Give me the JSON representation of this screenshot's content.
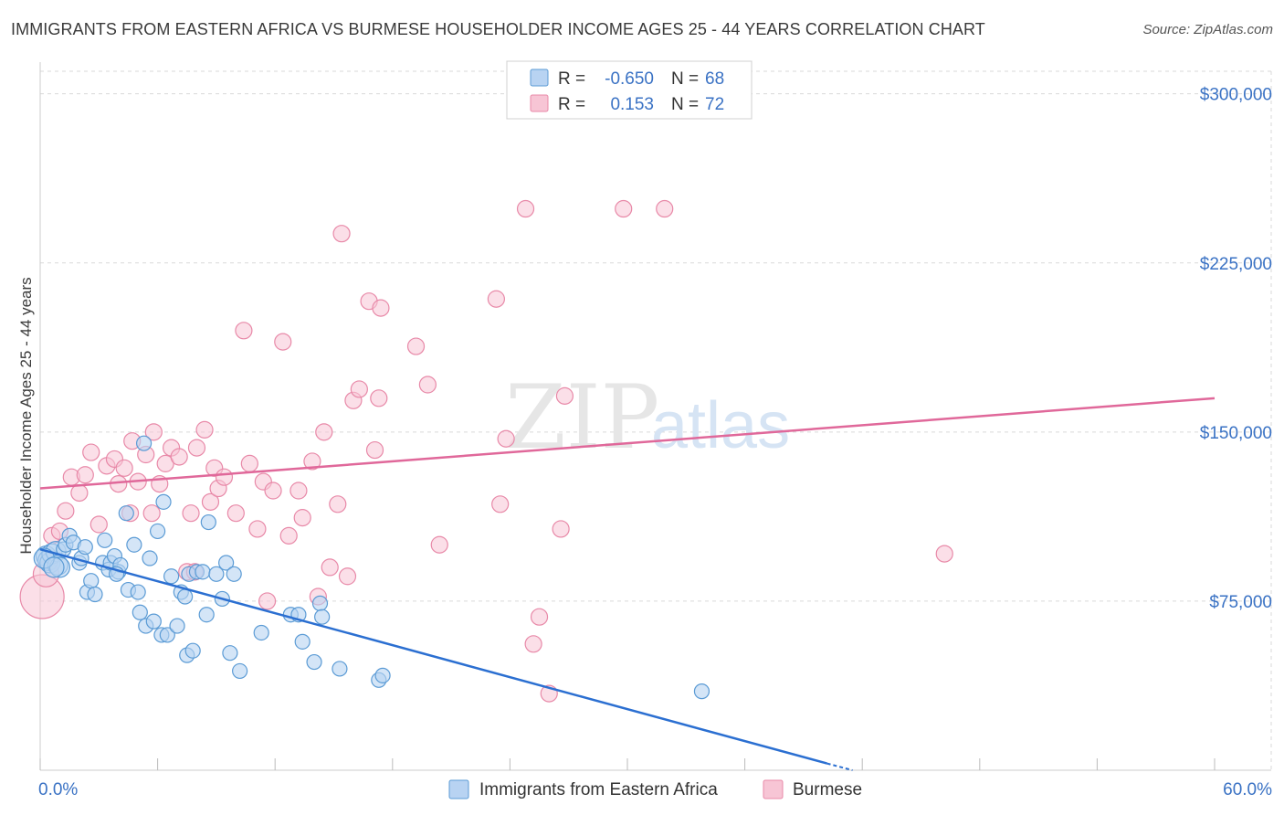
{
  "header": {
    "title": "IMMIGRANTS FROM EASTERN AFRICA VS BURMESE HOUSEHOLDER INCOME AGES 25 - 44 YEARS CORRELATION CHART",
    "source": "Source: ZipAtlas.com"
  },
  "watermark": {
    "zip": "ZIP",
    "atlas": "atlas"
  },
  "colors": {
    "blue": "#5b9bd5",
    "blue_fill": "#b8d3f2",
    "blue_line": "#2b6fd1",
    "pink": "#e889a8",
    "pink_fill": "#f7c5d5",
    "pink_line": "#e0689a",
    "axis_text": "#3a72c4",
    "grid": "#d9d9d9"
  },
  "legend_box": {
    "rows": [
      {
        "r_label": "R =",
        "r_value": "-0.650",
        "n_label": "N =",
        "n_value": "68"
      },
      {
        "r_label": "R =",
        "r_value": "0.153",
        "n_label": "N =",
        "n_value": "72"
      }
    ]
  },
  "chart_data": {
    "type": "scatter",
    "title": "IMMIGRANTS FROM EASTERN AFRICA VS BURMESE HOUSEHOLDER INCOME AGES 25 - 44 YEARS CORRELATION CHART",
    "xlabel": "",
    "ylabel": "Householder Income Ages 25 - 44 years",
    "xlim": [
      0,
      60
    ],
    "ylim": [
      0,
      310000
    ],
    "x_tick_labels": [
      "0.0%",
      "60.0%"
    ],
    "y_ticks": [
      75000,
      150000,
      225000,
      300000
    ],
    "y_tick_labels": [
      "$75,000",
      "$150,000",
      "$225,000",
      "$300,000"
    ],
    "grid": true,
    "legend": [
      "Immigrants from Eastern Africa",
      "Burmese"
    ],
    "series": [
      {
        "name": "Immigrants from Eastern Africa",
        "r": -0.65,
        "n": 68,
        "trend": {
          "x": [
            0,
            40.2
          ],
          "y": [
            98000,
            3000
          ]
        },
        "points": [
          [
            0.3,
            95000
          ],
          [
            0.4,
            93000
          ],
          [
            0.5,
            92000
          ],
          [
            0.6,
            96000
          ],
          [
            0.8,
            97000
          ],
          [
            0.9,
            91000
          ],
          [
            1.0,
            90000
          ],
          [
            1.2,
            98000
          ],
          [
            1.3,
            100000
          ],
          [
            1.5,
            104000
          ],
          [
            1.7,
            101000
          ],
          [
            2.0,
            92000
          ],
          [
            2.1,
            94000
          ],
          [
            2.3,
            99000
          ],
          [
            2.4,
            79000
          ],
          [
            2.6,
            84000
          ],
          [
            2.8,
            78000
          ],
          [
            3.2,
            92000
          ],
          [
            3.3,
            102000
          ],
          [
            3.5,
            89000
          ],
          [
            3.6,
            92000
          ],
          [
            3.8,
            95000
          ],
          [
            4.0,
            88000
          ],
          [
            4.1,
            91000
          ],
          [
            4.4,
            114000
          ],
          [
            4.5,
            80000
          ],
          [
            4.8,
            100000
          ],
          [
            5.0,
            79000
          ],
          [
            5.1,
            70000
          ],
          [
            5.3,
            145000
          ],
          [
            5.4,
            64000
          ],
          [
            5.6,
            94000
          ],
          [
            5.8,
            66000
          ],
          [
            6.0,
            106000
          ],
          [
            6.2,
            60000
          ],
          [
            6.3,
            119000
          ],
          [
            6.5,
            60000
          ],
          [
            6.7,
            86000
          ],
          [
            7.0,
            64000
          ],
          [
            7.2,
            79000
          ],
          [
            7.4,
            77000
          ],
          [
            7.5,
            51000
          ],
          [
            7.6,
            87000
          ],
          [
            7.8,
            53000
          ],
          [
            8.0,
            88000
          ],
          [
            8.3,
            88000
          ],
          [
            8.5,
            69000
          ],
          [
            8.6,
            110000
          ],
          [
            9.0,
            87000
          ],
          [
            9.3,
            76000
          ],
          [
            9.5,
            92000
          ],
          [
            9.7,
            52000
          ],
          [
            9.9,
            87000
          ],
          [
            10.2,
            44000
          ],
          [
            11.3,
            61000
          ],
          [
            12.8,
            69000
          ],
          [
            13.2,
            69000
          ],
          [
            13.4,
            57000
          ],
          [
            14.0,
            48000
          ],
          [
            14.3,
            74000
          ],
          [
            14.4,
            68000
          ],
          [
            15.3,
            45000
          ],
          [
            17.3,
            40000
          ],
          [
            17.5,
            42000
          ],
          [
            33.8,
            35000
          ],
          [
            0.2,
            94000
          ],
          [
            0.7,
            90000
          ],
          [
            3.9,
            87000
          ]
        ]
      },
      {
        "name": "Burmese",
        "r": 0.153,
        "n": 72,
        "trend": {
          "x": [
            0,
            60
          ],
          "y": [
            125000,
            165000
          ]
        },
        "points": [
          [
            0.1,
            77000
          ],
          [
            0.3,
            87000
          ],
          [
            0.6,
            104000
          ],
          [
            1.0,
            106000
          ],
          [
            1.3,
            115000
          ],
          [
            1.6,
            130000
          ],
          [
            2.0,
            123000
          ],
          [
            2.3,
            131000
          ],
          [
            2.6,
            141000
          ],
          [
            3.0,
            109000
          ],
          [
            3.4,
            135000
          ],
          [
            3.8,
            138000
          ],
          [
            4.0,
            127000
          ],
          [
            4.3,
            134000
          ],
          [
            4.6,
            114000
          ],
          [
            4.7,
            146000
          ],
          [
            5.0,
            128000
          ],
          [
            5.4,
            140000
          ],
          [
            5.7,
            114000
          ],
          [
            5.8,
            150000
          ],
          [
            6.1,
            127000
          ],
          [
            6.4,
            136000
          ],
          [
            6.7,
            143000
          ],
          [
            7.1,
            139000
          ],
          [
            7.5,
            88000
          ],
          [
            7.7,
            114000
          ],
          [
            7.9,
            88000
          ],
          [
            8.0,
            143000
          ],
          [
            8.4,
            151000
          ],
          [
            8.7,
            119000
          ],
          [
            8.9,
            134000
          ],
          [
            9.1,
            125000
          ],
          [
            9.4,
            130000
          ],
          [
            10.0,
            114000
          ],
          [
            10.4,
            195000
          ],
          [
            10.7,
            136000
          ],
          [
            11.1,
            107000
          ],
          [
            11.4,
            128000
          ],
          [
            11.6,
            75000
          ],
          [
            11.9,
            124000
          ],
          [
            12.4,
            190000
          ],
          [
            12.7,
            104000
          ],
          [
            13.2,
            124000
          ],
          [
            13.4,
            112000
          ],
          [
            13.9,
            137000
          ],
          [
            14.2,
            77000
          ],
          [
            14.5,
            150000
          ],
          [
            14.8,
            90000
          ],
          [
            15.2,
            118000
          ],
          [
            15.4,
            238000
          ],
          [
            15.7,
            86000
          ],
          [
            16.0,
            164000
          ],
          [
            16.3,
            169000
          ],
          [
            16.8,
            208000
          ],
          [
            17.1,
            142000
          ],
          [
            17.3,
            165000
          ],
          [
            17.4,
            205000
          ],
          [
            19.2,
            188000
          ],
          [
            19.8,
            171000
          ],
          [
            20.4,
            100000
          ],
          [
            23.3,
            209000
          ],
          [
            23.5,
            118000
          ],
          [
            23.8,
            147000
          ],
          [
            24.8,
            249000
          ],
          [
            25.2,
            56000
          ],
          [
            25.5,
            68000
          ],
          [
            26.0,
            34000
          ],
          [
            26.6,
            107000
          ],
          [
            26.8,
            166000
          ],
          [
            29.8,
            249000
          ],
          [
            31.9,
            249000
          ],
          [
            46.2,
            96000
          ]
        ]
      }
    ]
  },
  "bottom_legend": {
    "items": [
      {
        "label": "Immigrants from Eastern Africa"
      },
      {
        "label": "Burmese"
      }
    ]
  }
}
